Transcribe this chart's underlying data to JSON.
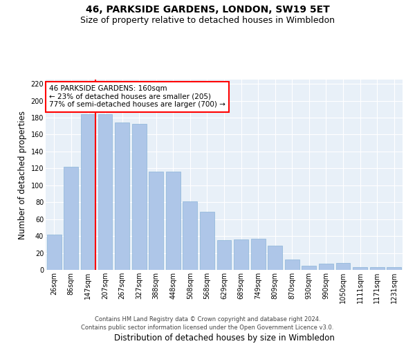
{
  "title": "46, PARKSIDE GARDENS, LONDON, SW19 5ET",
  "subtitle": "Size of property relative to detached houses in Wimbledon",
  "xlabel": "Distribution of detached houses by size in Wimbledon",
  "ylabel": "Number of detached properties",
  "categories": [
    "26sqm",
    "86sqm",
    "147sqm",
    "207sqm",
    "267sqm",
    "327sqm",
    "388sqm",
    "448sqm",
    "508sqm",
    "568sqm",
    "629sqm",
    "689sqm",
    "749sqm",
    "809sqm",
    "870sqm",
    "930sqm",
    "990sqm",
    "1050sqm",
    "1111sqm",
    "1171sqm",
    "1231sqm"
  ],
  "values": [
    42,
    122,
    184,
    184,
    174,
    173,
    116,
    116,
    81,
    69,
    35,
    36,
    37,
    29,
    12,
    5,
    7,
    8,
    3,
    3,
    3
  ],
  "bar_color": "#aec6e8",
  "bar_edge_color": "#8ab4d8",
  "vline_index": 2,
  "vline_color": "red",
  "annotation_text": "46 PARKSIDE GARDENS: 160sqm\n← 23% of detached houses are smaller (205)\n77% of semi-detached houses are larger (700) →",
  "annotation_box_color": "white",
  "annotation_box_edge": "red",
  "ylim": [
    0,
    225
  ],
  "yticks": [
    0,
    20,
    40,
    60,
    80,
    100,
    120,
    140,
    160,
    180,
    200,
    220
  ],
  "footer": "Contains HM Land Registry data © Crown copyright and database right 2024.\nContains public sector information licensed under the Open Government Licence v3.0.",
  "bg_color": "#e8f0f8",
  "grid_color": "white",
  "title_fontsize": 10,
  "subtitle_fontsize": 9,
  "tick_fontsize": 7,
  "ylabel_fontsize": 8.5,
  "xlabel_fontsize": 8.5,
  "ann_fontsize": 7.5,
  "footer_fontsize": 6
}
